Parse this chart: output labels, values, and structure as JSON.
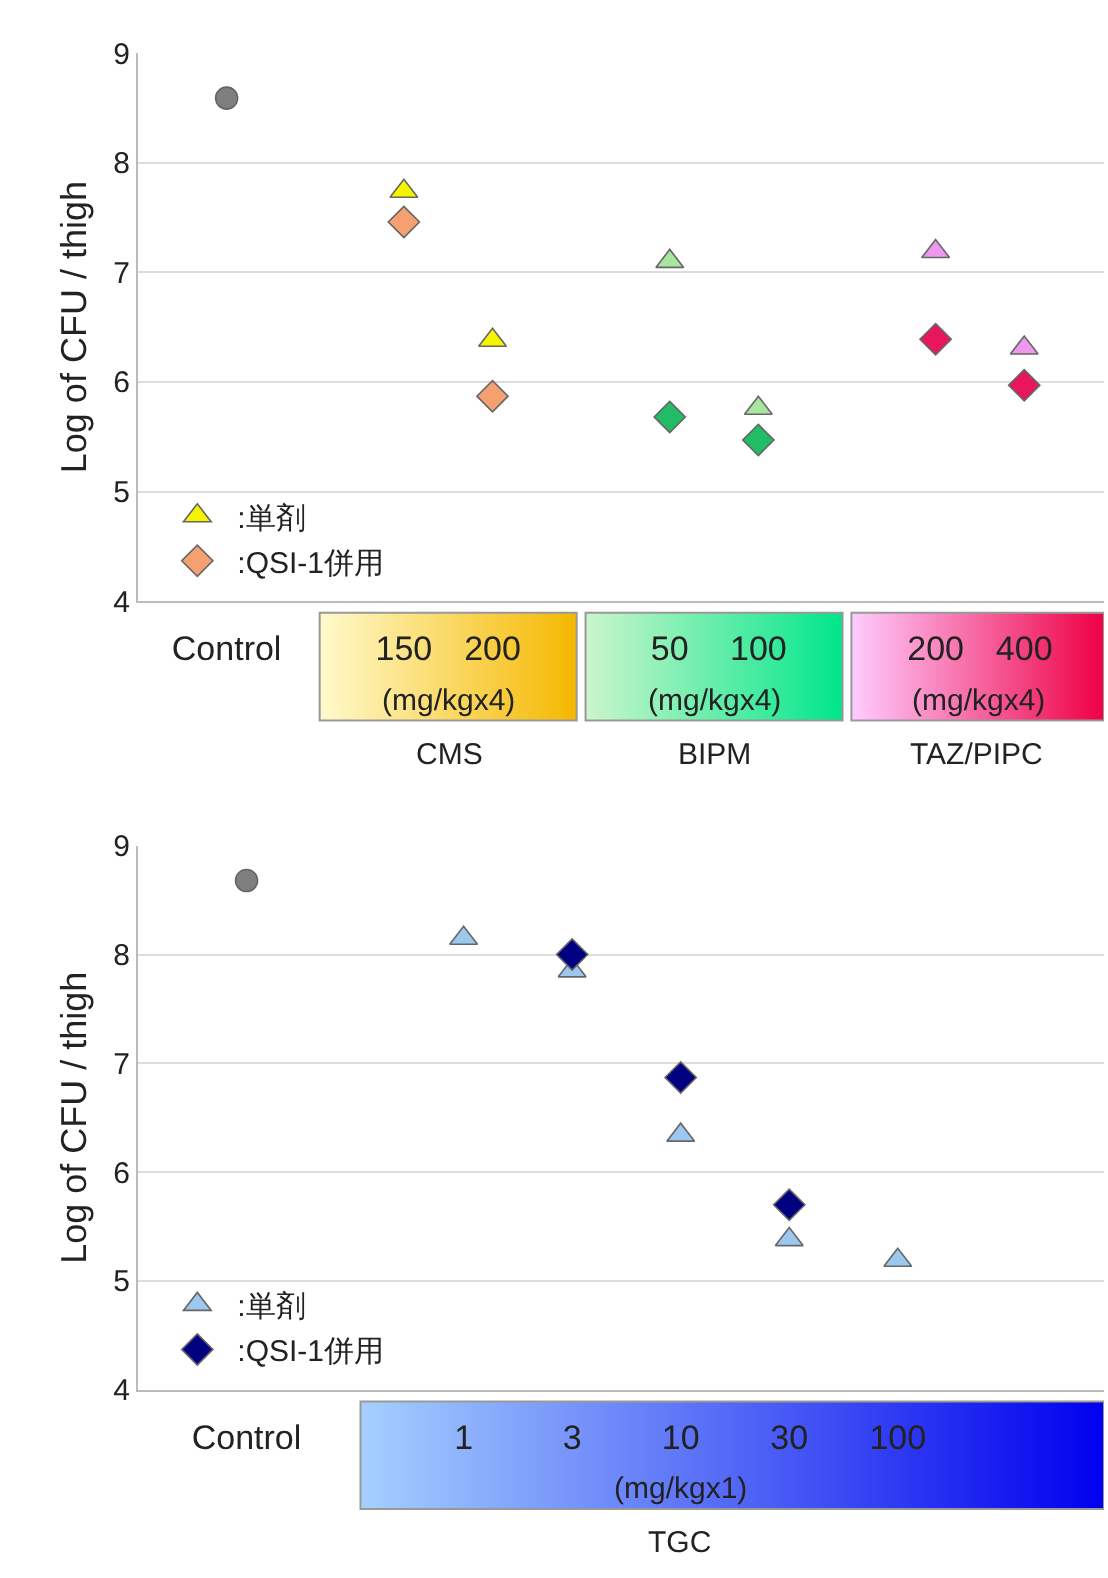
{
  "chart_data": [
    {
      "type": "scatter",
      "ylabel": "Log of CFU / thigh",
      "ylim": [
        4,
        9
      ],
      "yticks": [
        4,
        5,
        6,
        7,
        8,
        9
      ],
      "grid": "y",
      "legend": "bottom left",
      "categories": [
        "Control",
        null,
        "150",
        "200",
        null,
        "50",
        "100",
        null,
        "200",
        "400"
      ],
      "annotations": [
        "(mg/kgx4)",
        "CMS",
        "(mg/kgx4)",
        "BIPM",
        "(mg/kgx4)",
        "TAZ/PIPC"
      ],
      "series": [
        {
          "marker": "circle",
          "color": "#7f7f7f",
          "values": [
            8.59,
            null,
            null,
            null,
            null,
            null,
            null,
            null,
            null,
            null
          ]
        },
        {
          "name": ":単剤",
          "marker": "triangle",
          "colors": [
            null,
            null,
            "#f5f500",
            "#f5f500",
            null,
            "#a8e6a0",
            "#a8e6a0",
            null,
            "#ee99ee",
            "#ee99ee"
          ],
          "values": [
            null,
            null,
            7.74,
            6.38,
            null,
            7.1,
            5.76,
            null,
            7.19,
            6.31
          ]
        },
        {
          "name": ":QSI-1併用",
          "marker": "diamond",
          "colors": [
            null,
            null,
            "#f4a070",
            "#f4a070",
            null,
            "#22bb66",
            "#22bb66",
            null,
            "#e8175d",
            "#e8175d"
          ],
          "values": [
            null,
            null,
            7.46,
            5.87,
            null,
            5.68,
            5.47,
            null,
            6.39,
            5.97
          ]
        }
      ]
    },
    {
      "type": "scatter",
      "ylabel": "Log of CFU / thigh",
      "ylim": [
        4,
        9
      ],
      "yticks": [
        4,
        5,
        6,
        7,
        8,
        9
      ],
      "grid": "y",
      "legend": "bottom left",
      "categories": [
        "Control",
        null,
        "1",
        "3",
        "10",
        "30",
        "100",
        null
      ],
      "annotations": [
        "(mg/kgx1)",
        "TGC"
      ],
      "series": [
        {
          "marker": "circle",
          "color": "#7f7f7f",
          "values": [
            8.68,
            null,
            null,
            null,
            null,
            null,
            null,
            null
          ]
        },
        {
          "name": ":単剤",
          "marker": "triangle",
          "colors": [
            null,
            null,
            "#9cc8f0",
            "#9cc8f0",
            "#9cc8f0",
            "#9cc8f0",
            "#9cc8f0",
            null
          ],
          "values": [
            null,
            null,
            8.15,
            7.85,
            6.34,
            5.38,
            5.19,
            null
          ]
        },
        {
          "name": ":QSI-1併用",
          "marker": "diamond",
          "colors": [
            null,
            null,
            null,
            "#000080",
            "#000080",
            "#000080",
            null,
            null
          ],
          "values": [
            null,
            null,
            null,
            8.0,
            6.87,
            5.7,
            null,
            null
          ]
        }
      ]
    }
  ]
}
